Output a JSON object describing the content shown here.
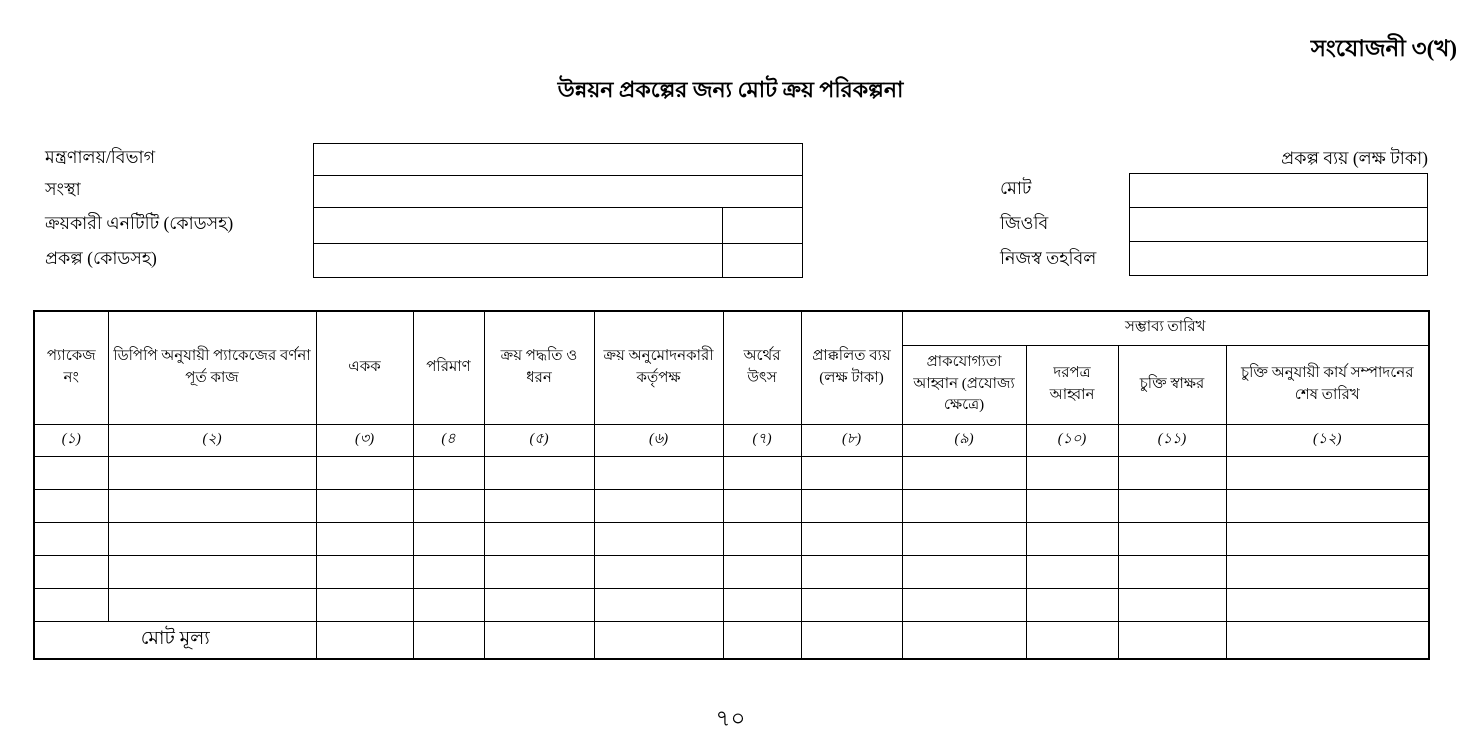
{
  "document": {
    "annexure": "সংযোজনী ৩(খ)",
    "title": "উন্নয়ন প্রকল্পের জন্য মোট ক্রয় পরিকল্পনা",
    "page_number": "৭০"
  },
  "form": {
    "left_fields": [
      {
        "label": "মন্ত্রণালয়/বিভাগ",
        "value": ""
      },
      {
        "label": "সংস্থা",
        "value": ""
      },
      {
        "label": "ক্রয়কারী এনটিটি (কোডসহ)",
        "value": "",
        "code_value": ""
      },
      {
        "label": "প্রকল্প (কোডসহ)",
        "value": "",
        "code_value": ""
      }
    ],
    "project_cost": {
      "header": "প্রকল্প ব্যয় (লক্ষ টাকা)",
      "fields": [
        {
          "label": "মোট",
          "value": ""
        },
        {
          "label": "জিওবি",
          "value": ""
        },
        {
          "label": "নিজস্ব তহবিল",
          "value": ""
        }
      ]
    }
  },
  "table": {
    "group_header": "সম্ভাব্য তারিখ",
    "columns": [
      {
        "label": "প্যাকেজ নং",
        "number": "(১)"
      },
      {
        "label": "ডিপিপি অনুযায়ী প্যাকেজের বর্ণনা পূর্ত কাজ",
        "number": "(২)"
      },
      {
        "label": "একক",
        "number": "(৩)"
      },
      {
        "label": "পরিমাণ",
        "number": "(৪"
      },
      {
        "label": "ক্রয় পদ্ধতি ও ধরন",
        "number": "(৫)"
      },
      {
        "label": "ক্রয় অনুমোদনকারী কর্তৃপক্ষ",
        "number": "(৬)"
      },
      {
        "label": "অর্থের উৎস",
        "number": "(৭)"
      },
      {
        "label": "প্রাক্কলিত ব্যয় (লক্ষ টাকা)",
        "number": "(৮)"
      },
      {
        "label": "প্রাকযোগ্যতা আহ্বান (প্রযোজ্য ক্ষেত্রে)",
        "number": "(৯)"
      },
      {
        "label": "দরপত্র আহ্বান",
        "number": "(১০)"
      },
      {
        "label": "চুক্তি স্বাক্ষর",
        "number": "(১১)"
      },
      {
        "label": "চুক্তি অনুযায়ী কার্য সম্পাদনের শেষ তারিখ",
        "number": "(১২)"
      }
    ],
    "empty_row_count": 5,
    "footer_label": "মোট মূল্য"
  },
  "colors": {
    "text": "#000000",
    "border": "#000000",
    "background": "#ffffff"
  }
}
